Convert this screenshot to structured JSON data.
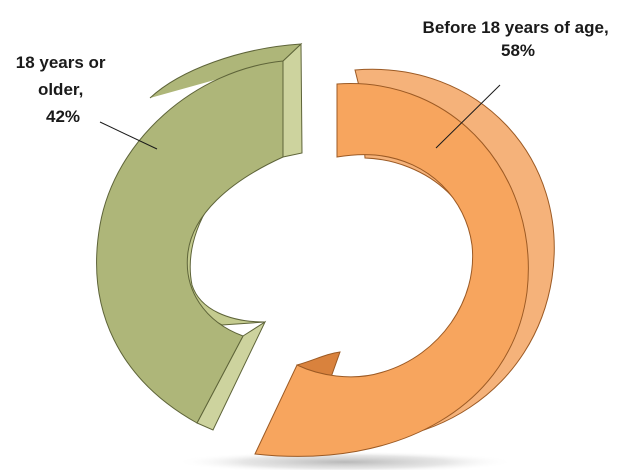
{
  "chart_data": {
    "type": "pie",
    "style": "3d-exploded-doughnut",
    "title": "",
    "legend": "none",
    "slices": [
      {
        "category": "Before 18 years of age",
        "value": 58,
        "label_lines": [
          "Before 18 years of age,",
          "58%"
        ],
        "color": "#F7A55E",
        "side_color": "#F5B27A",
        "inner_color": "#D9823D",
        "edge_color": "#9C5A24"
      },
      {
        "category": "18 years or older",
        "value": 42,
        "label_lines": [
          "18 years or",
          "older,",
          "42%"
        ],
        "color": "#AEB679",
        "side_color": "#CDD39E",
        "inner_color": "#C4CB8F",
        "edge_color": "#5E6439"
      }
    ]
  }
}
